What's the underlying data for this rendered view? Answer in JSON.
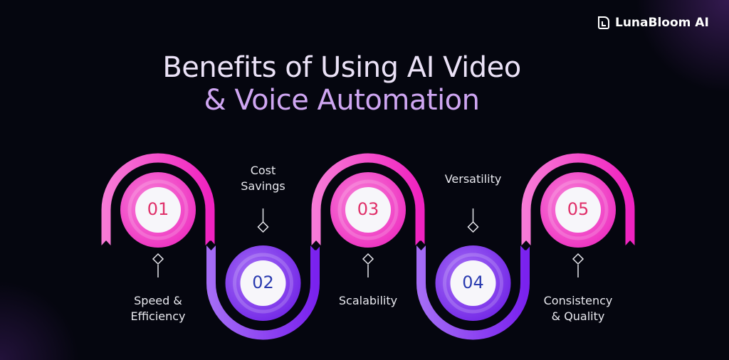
{
  "brand": {
    "name": "LunaBloom AI",
    "logo_icon": "lunabloom-logo-icon"
  },
  "title": {
    "line1": "Benefits of Using AI Video",
    "line2": "& Voice Automation"
  },
  "colors": {
    "pink": "#f23fc4",
    "purple": "#8a3cf0",
    "number_pink": "#e0306a",
    "number_blue": "#2a3bb0",
    "background": "#05060f"
  },
  "steps": [
    {
      "number": "01",
      "label_line1": "Speed &",
      "label_line2": "Efficiency"
    },
    {
      "number": "02",
      "label_line1": "Cost",
      "label_line2": "Savings"
    },
    {
      "number": "03",
      "label_line1": "Scalability",
      "label_line2": ""
    },
    {
      "number": "04",
      "label_line1": "Versatility",
      "label_line2": ""
    },
    {
      "number": "05",
      "label_line1": "Consistency",
      "label_line2": "& Quality"
    }
  ]
}
